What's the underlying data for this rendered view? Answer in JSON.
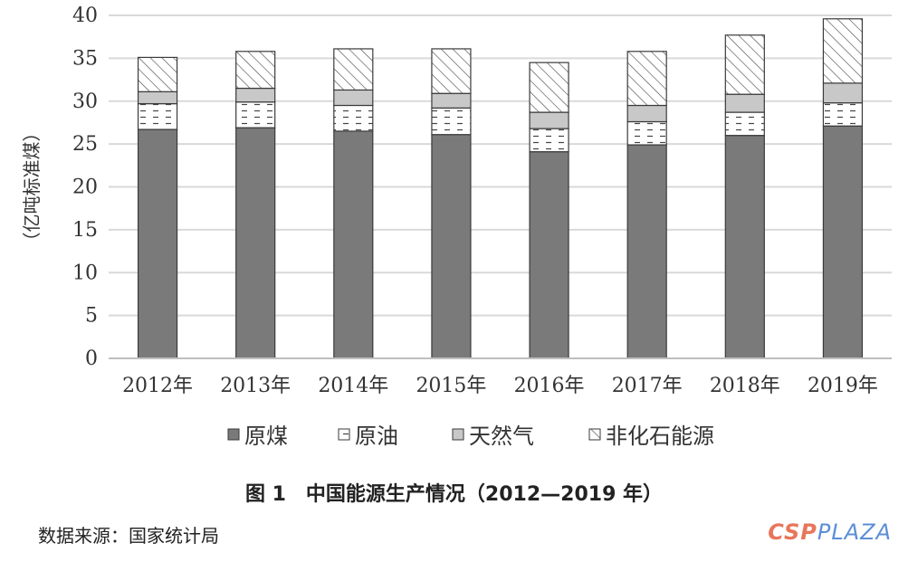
{
  "chart_data": {
    "type": "bar",
    "stacked": true,
    "categories": [
      "2012年",
      "2013年",
      "2014年",
      "2015年",
      "2016年",
      "2017年",
      "2018年",
      "2019年"
    ],
    "series": [
      {
        "name": "原煤",
        "values": [
          26.7,
          26.9,
          26.5,
          26.1,
          24.1,
          24.9,
          26.0,
          27.1
        ],
        "color": "#7a7a7a",
        "pattern": "solid"
      },
      {
        "name": "原油",
        "values": [
          3.0,
          3.0,
          3.0,
          3.1,
          2.7,
          2.7,
          2.7,
          2.7
        ],
        "color": "#ffffff",
        "pattern": "dashes"
      },
      {
        "name": "天然气",
        "values": [
          1.4,
          1.6,
          1.8,
          1.7,
          1.9,
          1.9,
          2.1,
          2.3
        ],
        "color": "#c8c8c8",
        "pattern": "solid"
      },
      {
        "name": "非化石能源",
        "values": [
          4.0,
          4.3,
          4.8,
          5.2,
          5.8,
          6.3,
          6.9,
          7.5
        ],
        "color": "#ffffff",
        "pattern": "hatch"
      }
    ],
    "ylabel": "（亿吨标准煤）",
    "ylim": [
      0,
      40
    ],
    "yticks": [
      "0",
      "5",
      "10",
      "15",
      "20",
      "25",
      "30",
      "35",
      "40"
    ],
    "grid": true,
    "legend_position": "bottom"
  },
  "caption": "图 1　中国能源生产情况（2012—2019 年）",
  "source": "数据来源：国家统计局",
  "watermark": {
    "part1": "CSP",
    "part2": "PLAZA"
  }
}
